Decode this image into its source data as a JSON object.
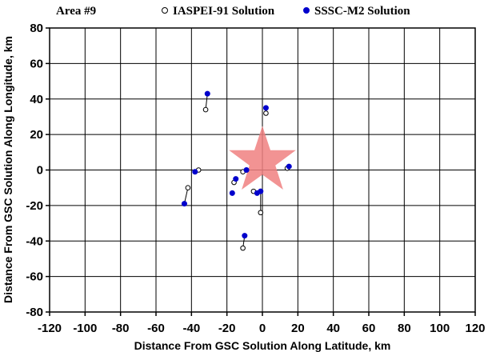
{
  "chart_data": {
    "type": "scatter",
    "area_label": "Area #9",
    "legend": [
      {
        "name": "IASPEI-91 Solution",
        "marker": "open-circle",
        "color": "#000000"
      },
      {
        "name": "SSSC-M2 Solution",
        "marker": "filled-circle",
        "color": "#0000cc"
      }
    ],
    "legend_placement": "top",
    "xlabel": "Distance From GSC Solution Along Latitude, km",
    "ylabel": "Distance From GSC Solution Along Longitude, km",
    "xlim": [
      -120,
      120
    ],
    "ylim": [
      -80,
      80
    ],
    "xticks": [
      "-120",
      "-100",
      "-80",
      "-60",
      "-40",
      "-20",
      "0",
      "20",
      "40",
      "60",
      "80",
      "100",
      "120"
    ],
    "yticks": [
      "80",
      "60",
      "40",
      "20",
      "0",
      "-20",
      "-40",
      "-60",
      "-80"
    ],
    "grid": true,
    "reference": {
      "label_marker": "star",
      "x": 0,
      "y": 5,
      "color": "#f08080"
    },
    "pairs": [
      {
        "iaspei": [
          -32,
          34
        ],
        "sssc": [
          -31,
          43
        ]
      },
      {
        "iaspei": [
          2,
          32
        ],
        "sssc": [
          2,
          35
        ]
      },
      {
        "iaspei": [
          -36,
          0
        ],
        "sssc": [
          -38,
          -1
        ]
      },
      {
        "iaspei": [
          -42,
          -10
        ],
        "sssc": [
          -44,
          -19
        ]
      },
      {
        "iaspei": [
          -16,
          -7
        ],
        "sssc": [
          -15,
          -5
        ]
      },
      {
        "iaspei": [
          -11,
          -1
        ],
        "sssc": [
          -9,
          0
        ]
      },
      {
        "iaspei": [
          -17,
          -13
        ],
        "sssc": [
          -17,
          -13
        ]
      },
      {
        "iaspei": [
          -5,
          -12
        ],
        "sssc": [
          -3,
          -13
        ]
      },
      {
        "iaspei": [
          -1,
          -24
        ],
        "sssc": [
          -1,
          -12
        ]
      },
      {
        "iaspei": [
          14,
          1
        ],
        "sssc": [
          15,
          2
        ]
      },
      {
        "iaspei": [
          -11,
          -44
        ],
        "sssc": [
          -10,
          -37
        ]
      }
    ]
  }
}
